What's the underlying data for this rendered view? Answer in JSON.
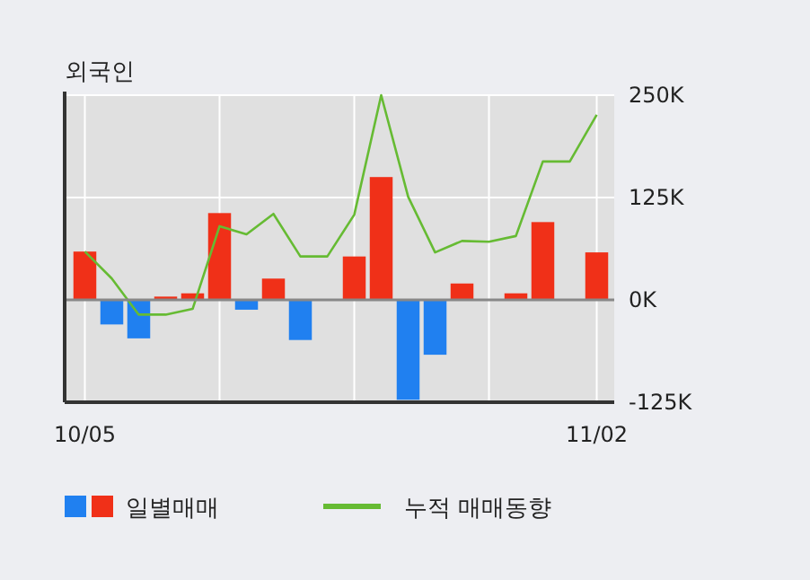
{
  "chart_data": {
    "type": "bar",
    "title": "외국인",
    "categories": [
      "10/05",
      null,
      null,
      null,
      null,
      null,
      null,
      null,
      null,
      null,
      null,
      null,
      null,
      null,
      null,
      null,
      null,
      null,
      null,
      "11/02"
    ],
    "series": [
      {
        "name": "일별매매",
        "colors": [
          "#f03018",
          "#2080f0",
          "#2080f0",
          "#f03018",
          "#f03018",
          "#f03018",
          "#2080f0",
          "#f03018",
          "#2080f0",
          "#f03018",
          "#f03018",
          "#f03018",
          "#2080f0",
          "#2080f0",
          "#f03018",
          "#f03018",
          "#f03018",
          "#f03018",
          "#f03018",
          "#f03018"
        ],
        "values": [
          59000,
          -30000,
          -47000,
          4000,
          8000,
          106000,
          -12000,
          26000,
          -49000,
          0,
          53000,
          150000,
          -122000,
          -67000,
          20000,
          0,
          8000,
          95000,
          0,
          58000
        ]
      },
      {
        "name": "누적 매매동향",
        "type": "line",
        "color": "#66bb33",
        "values": [
          59000,
          26000,
          -18000,
          -18000,
          -11000,
          90000,
          80000,
          105000,
          53000,
          53000,
          104000,
          250000,
          126000,
          58000,
          72000,
          71000,
          78000,
          169000,
          169000,
          226000
        ]
      }
    ],
    "ylim": [
      -125000,
      250000
    ],
    "yticks": [
      {
        "value": -125000,
        "label": "-125K"
      },
      {
        "value": 0,
        "label": "0K"
      },
      {
        "value": 125000,
        "label": "125K"
      },
      {
        "value": 250000,
        "label": "250K"
      }
    ],
    "grid": true,
    "legend": "bottom"
  }
}
